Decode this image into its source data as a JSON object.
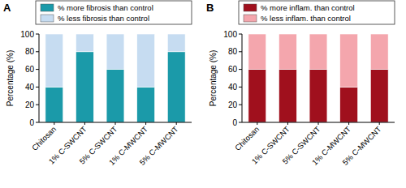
{
  "chart_data": [
    {
      "type": "bar",
      "title": "A",
      "y_label": "Percentage (%)",
      "stacked": true,
      "categories": [
        "Chitosan",
        "1% C-SWCNT",
        "5% C-SWCNT",
        "1% C-MWCNT",
        "5% C-MWCNT"
      ],
      "series": [
        {
          "name": "% more fibrosis than control",
          "color": "#1b9aa9",
          "values": [
            40,
            80,
            60,
            40,
            80
          ]
        },
        {
          "name": "% less fibrosis than control",
          "color": "#c6dcf1",
          "values": [
            60,
            20,
            40,
            60,
            20
          ]
        }
      ],
      "ylim": [
        0,
        100
      ],
      "yticks": [
        0,
        20,
        40,
        60,
        80,
        100
      ],
      "legend": "top"
    },
    {
      "type": "bar",
      "title": "B",
      "y_label": "Percentage (%)",
      "stacked": true,
      "categories": [
        "Chitosan",
        "1% C-SWCNT",
        "5% C-SWCNT",
        "1% C-MWCNT",
        "5% C-MWCNT"
      ],
      "series": [
        {
          "name": "% more inflam. than control",
          "color": "#a0101d",
          "values": [
            60,
            60,
            60,
            40,
            60
          ]
        },
        {
          "name": "% less inflam. than control",
          "color": "#f4a6ad",
          "values": [
            40,
            40,
            40,
            60,
            40
          ]
        }
      ],
      "ylim": [
        0,
        100
      ],
      "yticks": [
        0,
        20,
        40,
        60,
        80,
        100
      ],
      "legend": "top"
    }
  ]
}
